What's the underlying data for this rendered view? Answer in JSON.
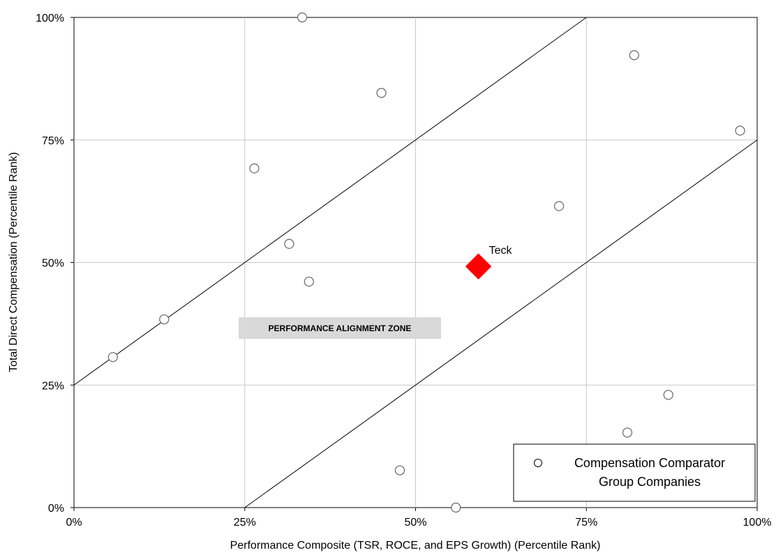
{
  "chart_data": {
    "type": "scatter",
    "title": "",
    "xlabel": "Performance Composite (TSR, ROCE, and EPS Growth) (Percentile Rank)",
    "ylabel": "Total Direct Compensation (Percentile Rank)",
    "xlim": [
      0,
      100
    ],
    "ylim": [
      0,
      100
    ],
    "x_ticks": [
      0,
      25,
      50,
      75,
      100
    ],
    "y_ticks": [
      0,
      25,
      50,
      75,
      100
    ],
    "x_tick_labels": [
      "0%",
      "25%",
      "50%",
      "75%",
      "100%"
    ],
    "y_tick_labels": [
      "0%",
      "25%",
      "50%",
      "75%",
      "100%"
    ],
    "grid": true,
    "legend_position": "bottom-right",
    "series": [
      {
        "name": "Compensation Comparator Group Companies",
        "marker": "open-circle",
        "color": "#666666",
        "points": [
          {
            "x": 5.7,
            "y": 30.7
          },
          {
            "x": 13.2,
            "y": 38.4
          },
          {
            "x": 26.4,
            "y": 69.2
          },
          {
            "x": 31.5,
            "y": 53.8
          },
          {
            "x": 33.4,
            "y": 100.0
          },
          {
            "x": 34.4,
            "y": 46.1
          },
          {
            "x": 45.0,
            "y": 84.6
          },
          {
            "x": 47.7,
            "y": 7.6
          },
          {
            "x": 55.9,
            "y": 0.0
          },
          {
            "x": 71.0,
            "y": 61.5
          },
          {
            "x": 81.0,
            "y": 15.3
          },
          {
            "x": 82.0,
            "y": 92.3
          },
          {
            "x": 87.0,
            "y": 23.0
          },
          {
            "x": 97.5,
            "y": 76.9
          }
        ]
      },
      {
        "name": "Teck",
        "marker": "filled-diamond",
        "color": "#ff0000",
        "points": [
          {
            "x": 59.2,
            "y": 49.2
          }
        ]
      }
    ],
    "reference_lines": [
      {
        "x1": 0,
        "y1": 25,
        "x2": 75,
        "y2": 100
      },
      {
        "x1": 25,
        "y1": 0,
        "x2": 100,
        "y2": 75
      }
    ],
    "annotations": [
      {
        "text": "Teck",
        "x": 59.2,
        "y": 49.2
      },
      {
        "text": "PERFORMANCE ALIGNMENT ZONE",
        "x": 35.0,
        "y": 36.0
      }
    ],
    "legend": {
      "entries": [
        "Compensation Comparator",
        "Group Companies"
      ]
    }
  }
}
